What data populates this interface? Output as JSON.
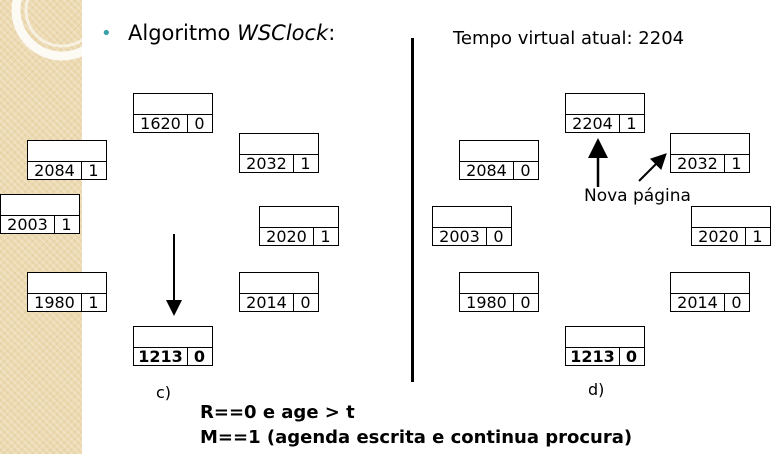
{
  "title": {
    "prefix": "Algoritmo ",
    "algorithm": "WSClock",
    "suffix": ":"
  },
  "virtual_time": "Tempo virtual atual: 2204",
  "left_frames": [
    {
      "page": "1620",
      "bit": "0"
    },
    {
      "page": "2032",
      "bit": "1"
    },
    {
      "page": "2020",
      "bit": "1"
    },
    {
      "page": "2014",
      "bit": "0"
    },
    {
      "page": "1213",
      "bit": "0"
    },
    {
      "page": "1980",
      "bit": "1"
    },
    {
      "page": "2003",
      "bit": "1"
    },
    {
      "page": "2084",
      "bit": "1"
    }
  ],
  "right_frames": [
    {
      "page": "2204",
      "bit": "1"
    },
    {
      "page": "2032",
      "bit": "1"
    },
    {
      "page": "2020",
      "bit": "1"
    },
    {
      "page": "2014",
      "bit": "0"
    },
    {
      "page": "1213",
      "bit": "0"
    },
    {
      "page": "1980",
      "bit": "0"
    },
    {
      "page": "2003",
      "bit": "0"
    },
    {
      "page": "2084",
      "bit": "0"
    }
  ],
  "caption_left": "c)",
  "caption_right": "d)",
  "new_page_label": "Nova página",
  "rule_r": "R==0 e age > t",
  "rule_m": "M==1 (agenda escrita e continua procura)"
}
